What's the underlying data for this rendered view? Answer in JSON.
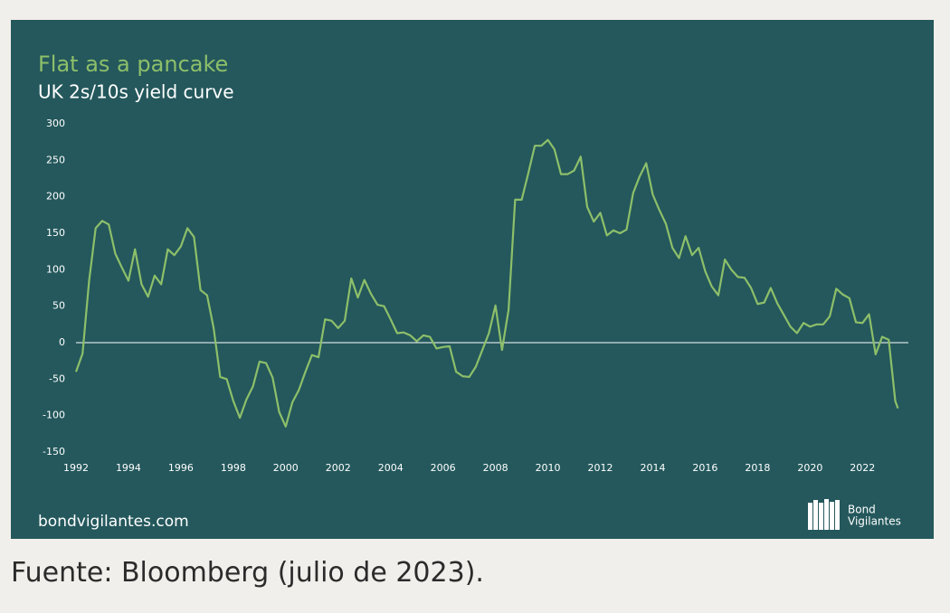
{
  "chart_data": {
    "type": "line",
    "title": "Flat as a pancake",
    "subtitle": "UK 2s/10s yield curve",
    "x": [
      1992,
      1992.25,
      1992.5,
      1992.75,
      1993,
      1993.25,
      1993.5,
      1993.75,
      1994,
      1994.25,
      1994.5,
      1994.75,
      1995,
      1995.25,
      1995.5,
      1995.75,
      1996,
      1996.25,
      1996.5,
      1996.75,
      1997,
      1997.25,
      1997.5,
      1997.75,
      1998,
      1998.25,
      1998.5,
      1998.75,
      1999,
      1999.25,
      1999.5,
      1999.75,
      2000,
      2000.25,
      2000.5,
      2000.75,
      2001,
      2001.25,
      2001.5,
      2001.75,
      2002,
      2002.25,
      2002.5,
      2002.75,
      2003,
      2003.25,
      2003.5,
      2003.75,
      2004,
      2004.25,
      2004.5,
      2004.75,
      2005,
      2005.25,
      2005.5,
      2005.75,
      2006,
      2006.25,
      2006.5,
      2006.75,
      2007,
      2007.25,
      2007.5,
      2007.75,
      2008,
      2008.25,
      2008.5,
      2008.75,
      2009,
      2009.25,
      2009.5,
      2009.75,
      2010,
      2010.25,
      2010.5,
      2010.75,
      2011,
      2011.25,
      2011.5,
      2011.75,
      2012,
      2012.25,
      2012.5,
      2012.75,
      2013,
      2013.25,
      2013.5,
      2013.75,
      2014,
      2014.25,
      2014.5,
      2014.75,
      2015,
      2015.25,
      2015.5,
      2015.75,
      2016,
      2016.25,
      2016.5,
      2016.75,
      2017,
      2017.25,
      2017.5,
      2017.75,
      2018,
      2018.25,
      2018.5,
      2018.75,
      2019,
      2019.25,
      2019.5,
      2019.75,
      2020,
      2020.25,
      2020.5,
      2020.75,
      2021,
      2021.25,
      2021.5,
      2021.75,
      2022,
      2022.25,
      2022.5,
      2022.75,
      2023,
      2023.25,
      2023.35
    ],
    "series": [
      {
        "name": "UK 2s/10s",
        "color": "#8dbf6a",
        "values": [
          -40,
          -15,
          85,
          157,
          167,
          162,
          122,
          103,
          85,
          128,
          80,
          63,
          92,
          80,
          128,
          120,
          132,
          157,
          145,
          72,
          65,
          20,
          -47,
          -50,
          -80,
          -103,
          -78,
          -60,
          -26,
          -28,
          -48,
          -95,
          -115,
          -82,
          -65,
          -40,
          -17,
          -20,
          32,
          30,
          20,
          30,
          88,
          62,
          86,
          67,
          52,
          50,
          32,
          13,
          14,
          10,
          2,
          10,
          8,
          -8,
          -6,
          -5,
          -40,
          -46,
          -47,
          -33,
          -10,
          13,
          51,
          -10,
          45,
          196,
          196,
          232,
          270,
          270,
          278,
          265,
          231,
          231,
          236,
          255,
          186,
          166,
          178,
          147,
          154,
          150,
          155,
          205,
          228,
          246,
          203,
          182,
          163,
          130,
          116,
          146,
          120,
          130,
          98,
          77,
          65,
          114,
          100,
          90,
          89,
          75,
          53,
          55,
          75,
          54,
          38,
          22,
          13,
          27,
          22,
          25,
          25,
          36,
          74,
          66,
          61,
          28,
          27,
          39,
          -16,
          8,
          4,
          -80,
          -90
        ]
      }
    ],
    "xlim": [
      1992,
      2023.75
    ],
    "xticks": [
      1992,
      1994,
      1996,
      1998,
      2000,
      2002,
      2004,
      2006,
      2008,
      2010,
      2012,
      2014,
      2016,
      2018,
      2020,
      2022
    ],
    "ylim": [
      -150,
      300
    ],
    "yticks": [
      -150,
      -100,
      -50,
      0,
      50,
      100,
      150,
      200,
      250,
      300
    ],
    "zero_line": true,
    "footer": "bondvigilantes.com",
    "logo": [
      "Bond",
      "Vigilantes"
    ]
  },
  "caption": "Fuente: Bloomberg (julio de 2023)."
}
